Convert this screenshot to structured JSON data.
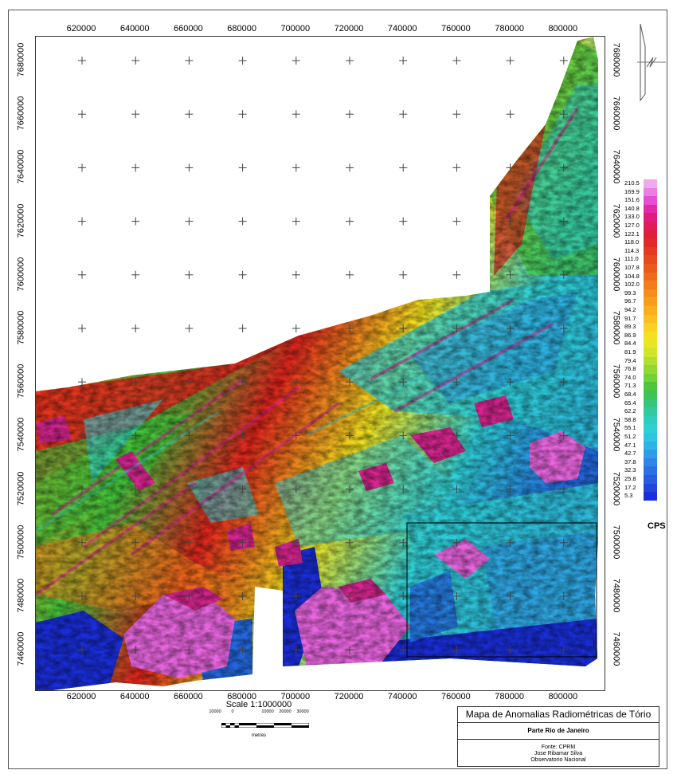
{
  "map": {
    "x_ticks": [
      "620000",
      "640000",
      "660000",
      "680000",
      "700000",
      "720000",
      "740000",
      "760000",
      "780000",
      "800000"
    ],
    "y_ticks": [
      "7680000",
      "7660000",
      "7640000",
      "7620000",
      "7600000",
      "7580000",
      "7560000",
      "7540000",
      "7520000",
      "7500000",
      "7480000",
      "7460000"
    ],
    "colors": {
      "pink": "#e966e0",
      "magenta": "#d6268f",
      "red": "#e3241d",
      "orange": "#f08a1a",
      "yellow": "#f2e51f",
      "green": "#44c43b",
      "cyan": "#2fd0d8",
      "blue": "#2469e0",
      "navy": "#1a2ed9"
    }
  },
  "legend": {
    "values": [
      "210.5",
      "169.9",
      "151.6",
      "140.8",
      "133.0",
      "127.0",
      "122.1",
      "118.0",
      "114.3",
      "111.0",
      "107.8",
      "104.8",
      "102.0",
      "99.3",
      "96.7",
      "94.2",
      "91.7",
      "89.3",
      "86.9",
      "84.4",
      "81.9",
      "79.4",
      "76.8",
      "74.0",
      "71.3",
      "68.4",
      "65.4",
      "62.2",
      "58.8",
      "55.1",
      "51.2",
      "47.1",
      "42.7",
      "37.8",
      "32.3",
      "25.8",
      "17.2",
      "5.3"
    ],
    "colors": [
      "#f2a8ec",
      "#e97fe2",
      "#e44fd3",
      "#e22aa8",
      "#e21c7f",
      "#e01c5a",
      "#df1f3b",
      "#df2a25",
      "#e33a20",
      "#e64a1e",
      "#ea5a1c",
      "#ee6b1b",
      "#f27c1b",
      "#f58d1c",
      "#f79d1d",
      "#f9ae1f",
      "#fabf21",
      "#fad023",
      "#f6df23",
      "#e7e626",
      "#cfe52a",
      "#b2df2e",
      "#92d833",
      "#72d039",
      "#4fc63e",
      "#3cc457",
      "#37c57b",
      "#33c99e",
      "#30cdbd",
      "#2fd0d4",
      "#2dc5e1",
      "#2eb3e6",
      "#2f9de6",
      "#2f86e6",
      "#2d70e3",
      "#295be0",
      "#2246dd",
      "#1a2ed9"
    ],
    "unit": "CPS"
  },
  "scale": {
    "title": "Scale 1:1000000",
    "labels": [
      "10000",
      "0",
      "10000",
      "20000",
      "30000"
    ],
    "units": "metres"
  },
  "title_block": {
    "title": "Mapa de Anomalias Radiométricas de Tório",
    "subtitle": "Parte Rio de Janeiro",
    "source_lines": [
      "Fonte: CPRM",
      "Jose Ribamar Silva",
      "Observatorio Nacional"
    ]
  }
}
